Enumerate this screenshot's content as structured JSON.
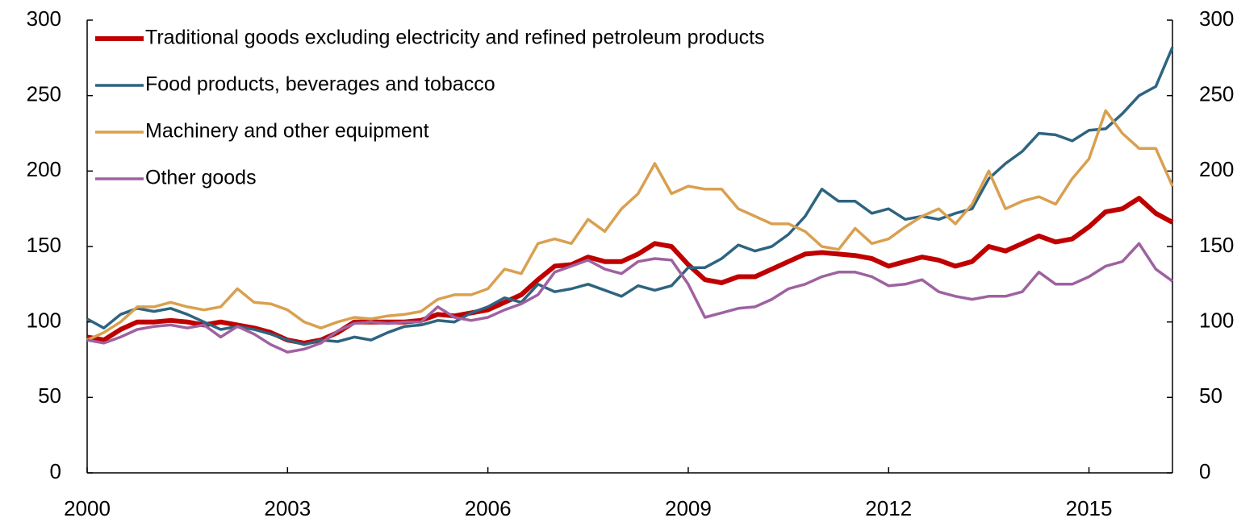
{
  "chart_data": {
    "type": "line",
    "x": [
      2000,
      2000.25,
      2000.5,
      2000.75,
      2001,
      2001.25,
      2001.5,
      2001.75,
      2002,
      2002.25,
      2002.5,
      2002.75,
      2003,
      2003.25,
      2003.5,
      2003.75,
      2004,
      2004.25,
      2004.5,
      2004.75,
      2005,
      2005.25,
      2005.5,
      2005.75,
      2006,
      2006.25,
      2006.5,
      2006.75,
      2007,
      2007.25,
      2007.5,
      2007.75,
      2008,
      2008.25,
      2008.5,
      2008.75,
      2009,
      2009.25,
      2009.5,
      2009.75,
      2010,
      2010.25,
      2010.5,
      2010.75,
      2011,
      2011.25,
      2011.5,
      2011.75,
      2012,
      2012.25,
      2012.5,
      2012.75,
      2013,
      2013.25,
      2013.5,
      2013.75,
      2014,
      2014.25,
      2014.5,
      2014.75,
      2015,
      2015.25,
      2015.5,
      2015.75,
      2016,
      2016.25
    ],
    "series": [
      {
        "name": "Traditional goods excluding electricity and refined petroleum products",
        "color": "#c00000",
        "values": [
          90,
          88,
          95,
          100,
          100,
          101,
          100,
          98,
          100,
          98,
          96,
          93,
          88,
          86,
          88,
          93,
          100,
          100,
          100,
          100,
          101,
          105,
          104,
          106,
          108,
          113,
          118,
          128,
          137,
          138,
          143,
          140,
          140,
          145,
          152,
          150,
          138,
          128,
          126,
          130,
          130,
          135,
          140,
          145,
          146,
          145,
          144,
          142,
          137,
          140,
          143,
          141,
          137,
          140,
          150,
          147,
          152,
          157,
          153,
          155,
          163,
          173,
          175,
          182,
          172,
          166
        ]
      },
      {
        "name": "Food products, beverages and tobacco",
        "color": "#2e6480",
        "values": [
          102,
          96,
          105,
          109,
          107,
          109,
          105,
          100,
          95,
          97,
          95,
          92,
          88,
          85,
          88,
          87,
          90,
          88,
          93,
          97,
          98,
          101,
          100,
          106,
          110,
          116,
          113,
          125,
          120,
          122,
          125,
          121,
          117,
          124,
          121,
          124,
          136,
          136,
          142,
          151,
          147,
          150,
          158,
          170,
          188,
          180,
          180,
          172,
          175,
          168,
          170,
          168,
          172,
          175,
          195,
          205,
          213,
          225,
          224,
          220,
          227,
          228,
          238,
          250,
          256,
          282
        ]
      },
      {
        "name": "Machinery and other equipment",
        "color": "#d9a050",
        "values": [
          88,
          93,
          100,
          110,
          110,
          113,
          110,
          108,
          110,
          122,
          113,
          112,
          108,
          100,
          96,
          100,
          103,
          102,
          104,
          105,
          107,
          115,
          118,
          118,
          122,
          135,
          132,
          152,
          155,
          152,
          168,
          160,
          175,
          185,
          205,
          185,
          190,
          188,
          188,
          175,
          170,
          165,
          165,
          160,
          150,
          148,
          162,
          152,
          155,
          163,
          170,
          175,
          165,
          178,
          200,
          175,
          180,
          183,
          178,
          195,
          208,
          240,
          225,
          215,
          215,
          190
        ]
      },
      {
        "name": "Other goods",
        "color": "#9e62a0",
        "values": [
          88,
          86,
          90,
          95,
          97,
          98,
          96,
          98,
          90,
          97,
          92,
          85,
          80,
          82,
          86,
          94,
          99,
          100,
          99,
          100,
          100,
          110,
          103,
          101,
          103,
          108,
          112,
          118,
          133,
          137,
          141,
          135,
          132,
          140,
          142,
          141,
          125,
          103,
          106,
          109,
          110,
          115,
          122,
          125,
          130,
          133,
          133,
          130,
          124,
          125,
          128,
          120,
          117,
          115,
          117,
          117,
          120,
          133,
          125,
          125,
          130,
          137,
          140,
          152,
          135,
          127
        ]
      }
    ],
    "xlim": [
      2000,
      2016.25
    ],
    "xticks": [
      2000,
      2003,
      2006,
      2009,
      2012,
      2015
    ],
    "ylim": [
      0,
      300
    ],
    "yticks": [
      0,
      50,
      100,
      150,
      200,
      250,
      300
    ],
    "y2lim": [
      0,
      300
    ],
    "y2ticks": [
      0,
      50,
      100,
      150,
      200,
      250,
      300
    ],
    "legend": "upper left"
  }
}
